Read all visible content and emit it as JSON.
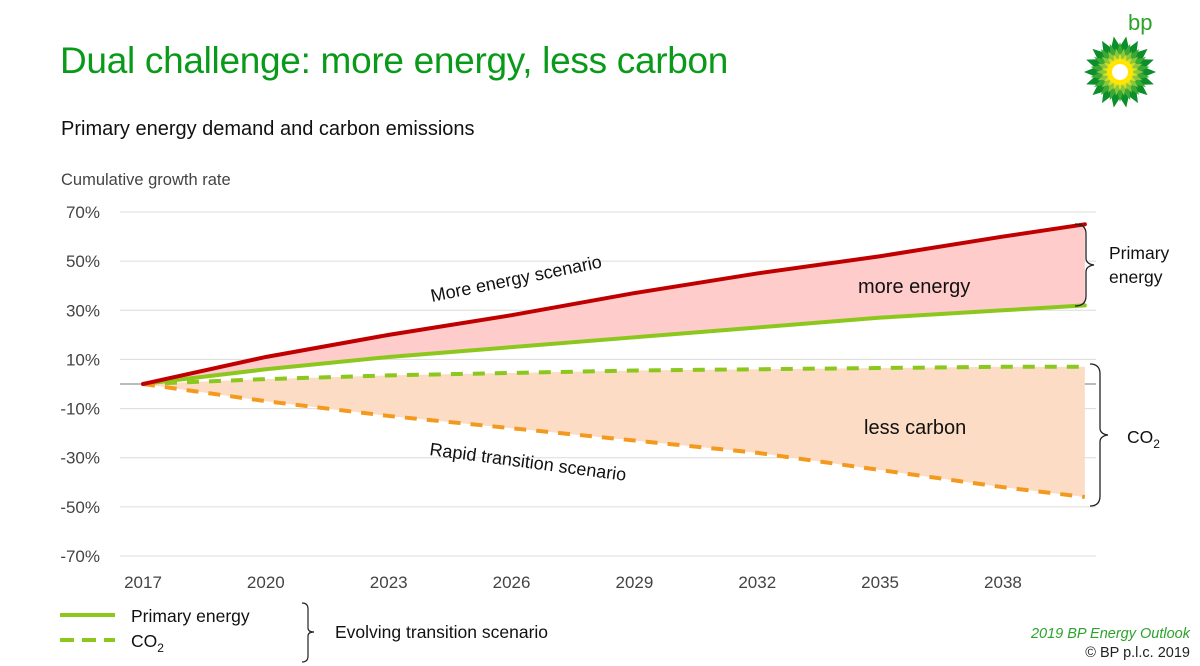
{
  "header": {
    "title": "Dual challenge: more energy, less carbon",
    "subtitle": "Primary energy demand and carbon emissions",
    "logo_text": "bp",
    "logo_icon": "bp-helios-icon"
  },
  "footer": {
    "source": "2019 BP Energy Outlook",
    "copyright": "© BP p.l.c. 2019"
  },
  "colors": {
    "brand_green": "#0a9a1a",
    "more_energy_line": "#c00000",
    "primary_energy_line": "#8cc71e",
    "co2_evolving_line": "#8cc71e",
    "rapid_transition_line": "#f39a1e",
    "more_energy_fill": "#ffcccc",
    "less_carbon_fill": "#fcdcc4"
  },
  "chart_data": {
    "type": "line",
    "title": "Primary energy demand and carbon emissions",
    "ylabel": "Cumulative growth rate",
    "xlabel": "",
    "x": [
      2017,
      2020,
      2023,
      2026,
      2029,
      2032,
      2035,
      2038,
      2040
    ],
    "xticks": [
      "2017",
      "2020",
      "2023",
      "2026",
      "2029",
      "2032",
      "2035",
      "2038"
    ],
    "yticks": [
      "70%",
      "50%",
      "30%",
      "10%",
      "-10%",
      "-30%",
      "-50%",
      "-70%"
    ],
    "ytick_values": [
      70,
      50,
      30,
      10,
      -10,
      -30,
      -50,
      -70
    ],
    "ylim": [
      -70,
      70
    ],
    "xlim": [
      2017,
      2040
    ],
    "grid": true,
    "unit": "%",
    "series": [
      {
        "name": "More energy scenario",
        "style": "solid",
        "values": [
          0,
          11,
          20,
          28,
          37,
          45,
          52,
          60,
          65
        ]
      },
      {
        "name": "Primary energy (Evolving transition)",
        "style": "solid",
        "values": [
          0,
          6,
          11,
          15,
          19,
          23,
          27,
          30,
          32
        ]
      },
      {
        "name": "CO2 (Evolving transition)",
        "style": "dashed",
        "values": [
          0,
          2,
          3.5,
          4.5,
          5.5,
          6,
          6.5,
          7,
          7
        ]
      },
      {
        "name": "Rapid transition scenario",
        "style": "dashed",
        "values": [
          0,
          -7,
          -13,
          -18,
          -23,
          -28,
          -35,
          -42,
          -46
        ]
      }
    ],
    "annotations": {
      "more_energy_scenario": "More energy scenario",
      "rapid_transition_scenario": "Rapid transition scenario",
      "more_energy_area": "more energy",
      "less_carbon_area": "less carbon",
      "bracket_primary_line1": "Primary",
      "bracket_primary_line2": "energy",
      "bracket_co2": "CO",
      "bracket_co2_sub": "2"
    },
    "legend": {
      "placement": "bottom-left",
      "items": [
        {
          "label": "Primary energy",
          "style": "solid"
        },
        {
          "label": "CO",
          "sub": "2",
          "style": "dashed"
        }
      ],
      "group_label": "Evolving transition scenario"
    }
  }
}
